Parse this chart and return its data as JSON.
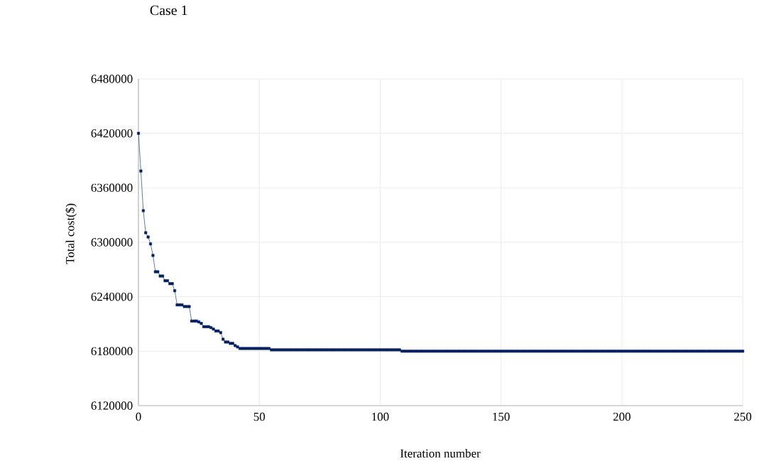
{
  "chart_data": {
    "type": "line",
    "title": "Case 1",
    "xlabel": "Iteration number",
    "ylabel": "Total cost($)",
    "xlim": [
      0,
      250
    ],
    "xticks": [
      0,
      50,
      100,
      150,
      200,
      250
    ],
    "ylim": [
      6120000,
      6480000
    ],
    "yticks": [
      6120000,
      6180000,
      6240000,
      6300000,
      6360000,
      6420000,
      6480000
    ],
    "grid": true,
    "marker": "square",
    "line_style": "solid",
    "x": [
      0,
      1,
      2,
      3,
      4,
      5,
      6,
      7,
      8,
      9,
      10,
      11,
      12,
      13,
      14,
      15,
      16,
      17,
      18,
      19,
      20,
      21,
      22,
      23,
      24,
      25,
      26,
      27,
      28,
      29,
      30,
      31,
      32,
      33,
      34,
      35,
      36,
      37,
      38,
      39,
      40,
      41,
      42,
      43,
      44,
      45,
      46,
      47,
      48,
      49,
      50,
      51,
      52,
      53,
      54,
      55,
      56,
      57,
      58,
      59,
      60,
      61,
      62,
      63,
      64,
      65,
      66,
      67,
      68,
      69,
      70,
      71,
      72,
      73,
      74,
      75,
      76,
      77,
      78,
      79,
      80,
      81,
      82,
      83,
      84,
      85,
      86,
      87,
      88,
      89,
      90,
      91,
      92,
      93,
      94,
      95,
      96,
      97,
      98,
      99,
      100,
      101,
      102,
      103,
      104,
      105,
      106,
      107,
      108,
      109,
      110,
      111,
      112,
      113,
      114,
      115,
      116,
      117,
      118,
      119,
      120,
      121,
      122,
      123,
      124,
      125,
      126,
      127,
      128,
      129,
      130,
      131,
      132,
      133,
      134,
      135,
      136,
      137,
      138,
      139,
      140,
      141,
      142,
      143,
      144,
      145,
      146,
      147,
      148,
      149,
      150,
      151,
      152,
      153,
      154,
      155,
      156,
      157,
      158,
      159,
      160,
      161,
      162,
      163,
      164,
      165,
      166,
      167,
      168,
      169,
      170,
      171,
      172,
      173,
      174,
      175,
      176,
      177,
      178,
      179,
      180,
      181,
      182,
      183,
      184,
      185,
      186,
      187,
      188,
      189,
      190,
      191,
      192,
      193,
      194,
      195,
      196,
      197,
      198,
      199,
      200,
      201,
      202,
      203,
      204,
      205,
      206,
      207,
      208,
      209,
      210,
      211,
      212,
      213,
      214,
      215,
      216,
      217,
      218,
      219,
      220,
      221,
      222,
      223,
      224,
      225,
      226,
      227,
      228,
      229,
      230,
      231,
      232,
      233,
      234,
      235,
      236,
      237,
      238,
      239,
      240,
      241,
      242,
      243,
      244,
      245,
      246,
      247,
      248,
      249,
      250
    ],
    "series": [
      {
        "color": "#002060",
        "values": [
          6420000,
          6378500,
          6334800,
          6310500,
          6305800,
          6298200,
          6285500,
          6267500,
          6267500,
          6262800,
          6262800,
          6257600,
          6257600,
          6254400,
          6254400,
          6246600,
          6231000,
          6231000,
          6231000,
          6229200,
          6229200,
          6229200,
          6213200,
          6213200,
          6213200,
          6212200,
          6210600,
          6207000,
          6207000,
          6207000,
          6206000,
          6204400,
          6202300,
          6202300,
          6200500,
          6193200,
          6190100,
          6190100,
          6188600,
          6188600,
          6186200,
          6184700,
          6183000,
          6183000,
          6183000,
          6183000,
          6183000,
          6183000,
          6183000,
          6183000,
          6183000,
          6183000,
          6183000,
          6183000,
          6183000,
          6181500,
          6181500,
          6181500,
          6181500,
          6181500,
          6181500,
          6181500,
          6181500,
          6181500,
          6181500,
          6181500,
          6181500,
          6181500,
          6181500,
          6181500,
          6181500,
          6181500,
          6181500,
          6181500,
          6181500,
          6181500,
          6181500,
          6181500,
          6181500,
          6181500,
          6181500,
          6181500,
          6181500,
          6181500,
          6181500,
          6181500,
          6181500,
          6181500,
          6181500,
          6181500,
          6181500,
          6181500,
          6181500,
          6181500,
          6181500,
          6181500,
          6181500,
          6181500,
          6181500,
          6181500,
          6181500,
          6181500,
          6181500,
          6181500,
          6181500,
          6181500,
          6181500,
          6181500,
          6181500,
          6180000,
          6180000,
          6180000,
          6180000,
          6180000,
          6180000,
          6180000,
          6180000,
          6180000,
          6180000,
          6180000,
          6180000,
          6180000,
          6180000,
          6180000,
          6180000,
          6180000,
          6180000,
          6180000,
          6180000,
          6180000,
          6180000,
          6180000,
          6180000,
          6180000,
          6180000,
          6180000,
          6180000,
          6180000,
          6180000,
          6180000,
          6180000,
          6180000,
          6180000,
          6180000,
          6180000,
          6180000,
          6180000,
          6180000,
          6180000,
          6180000,
          6180000,
          6180000,
          6180000,
          6180000,
          6180000,
          6180000,
          6180000,
          6180000,
          6180000,
          6180000,
          6180000,
          6180000,
          6180000,
          6180000,
          6180000,
          6180000,
          6180000,
          6180000,
          6180000,
          6180000,
          6180000,
          6180000,
          6180000,
          6180000,
          6180000,
          6180000,
          6180000,
          6180000,
          6180000,
          6180000,
          6180000,
          6180000,
          6180000,
          6180000,
          6180000,
          6180000,
          6180000,
          6180000,
          6180000,
          6180000,
          6180000,
          6180000,
          6180000,
          6180000,
          6180000,
          6180000,
          6180000,
          6180000,
          6180000,
          6180000,
          6180000,
          6180000,
          6180000,
          6180000,
          6180000,
          6180000,
          6180000,
          6180000,
          6180000,
          6180000,
          6180000,
          6180000,
          6180000,
          6180000,
          6180000,
          6180000,
          6180000,
          6180000,
          6180000,
          6180000,
          6180000,
          6180000,
          6180000,
          6180000,
          6180000,
          6180000,
          6180000,
          6180000,
          6180000,
          6180000,
          6180000,
          6180000,
          6180000,
          6180000,
          6180000,
          6180000,
          6180000,
          6180000,
          6180000,
          6180000,
          6180000,
          6180000,
          6180000,
          6180000,
          6180000,
          6180000,
          6180000,
          6180000,
          6180000,
          6180000,
          6180000
        ]
      }
    ]
  }
}
